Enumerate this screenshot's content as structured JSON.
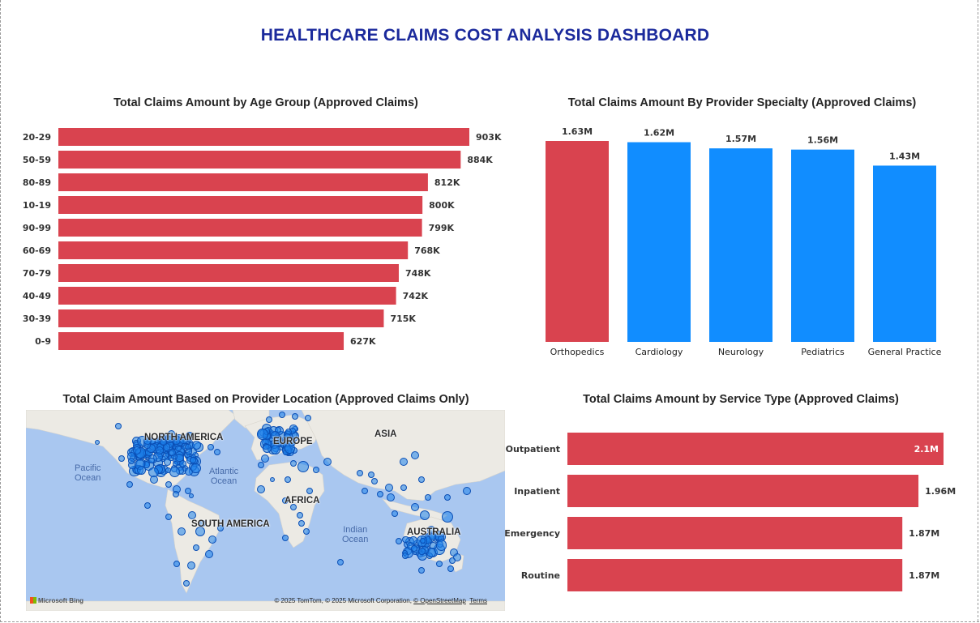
{
  "dashboard": {
    "title": "HEALTHCARE CLAIMS COST ANALYSIS DASHBOARD"
  },
  "colors": {
    "red_bar": "#d9434f",
    "blue_bar": "#118dff",
    "title_blue": "#1b2a9c"
  },
  "chart_data": [
    {
      "id": "age",
      "type": "bar",
      "orientation": "horizontal",
      "title": "Total Claims Amount by Age Group (Approved Claims)",
      "categories": [
        "20-29",
        "50-59",
        "80-89",
        "10-19",
        "90-99",
        "60-69",
        "70-79",
        "40-49",
        "30-39",
        "0-9"
      ],
      "values": [
        903,
        884,
        812,
        800,
        799,
        768,
        748,
        742,
        715,
        627
      ],
      "labels": [
        "903K",
        "884K",
        "812K",
        "800K",
        "799K",
        "768K",
        "748K",
        "742K",
        "715K",
        "627K"
      ],
      "unit": "K",
      "color": "#d9434f",
      "xlim": [
        0,
        903
      ]
    },
    {
      "id": "specialty",
      "type": "bar",
      "orientation": "vertical",
      "title": "Total Claims Amount By Provider Specialty (Approved Claims)",
      "categories": [
        "Orthopedics",
        "Cardiology",
        "Neurology",
        "Pediatrics",
        "General Practice"
      ],
      "values": [
        1.63,
        1.62,
        1.57,
        1.56,
        1.43
      ],
      "labels": [
        "1.63M",
        "1.62M",
        "1.57M",
        "1.56M",
        "1.43M"
      ],
      "unit": "M",
      "colors": [
        "#d9434f",
        "#118dff",
        "#118dff",
        "#118dff",
        "#118dff"
      ],
      "ylim": [
        0,
        1.63
      ]
    },
    {
      "id": "service",
      "type": "bar",
      "orientation": "horizontal",
      "title": "Total Claims Amount by Service Type (Approved Claims)",
      "categories": [
        "Outpatient",
        "Inpatient",
        "Emergency",
        "Routine"
      ],
      "values": [
        2.1,
        1.96,
        1.87,
        1.87
      ],
      "labels": [
        "2.1M",
        "1.96M",
        "1.87M",
        "1.87M"
      ],
      "unit": "M",
      "color": "#d9434f",
      "xlim": [
        0,
        2.1
      ]
    }
  ],
  "map": {
    "title": "Total Claim Amount Based on Provider Location (Approved Claims Only)",
    "continents": {
      "north_america": "NORTH AMERICA",
      "south_america": "SOUTH AMERICA",
      "europe": "EUROPE",
      "asia": "ASIA",
      "africa": "AFRICA",
      "australia": "AUSTRALIA"
    },
    "oceans": {
      "pacific": "Pacific\nOcean",
      "atlantic": "Atlantic\nOcean",
      "indian": "Indian\nOcean"
    },
    "credit": "© 2025 TomTom, © 2025 Microsoft Corporation,",
    "credit_osm": "© OpenStreetMap",
    "credit_terms": "Terms",
    "logo": "Microsoft Bing",
    "bubble_color": "#1f78e0",
    "bubble_icon": "map-bubble-icon"
  }
}
